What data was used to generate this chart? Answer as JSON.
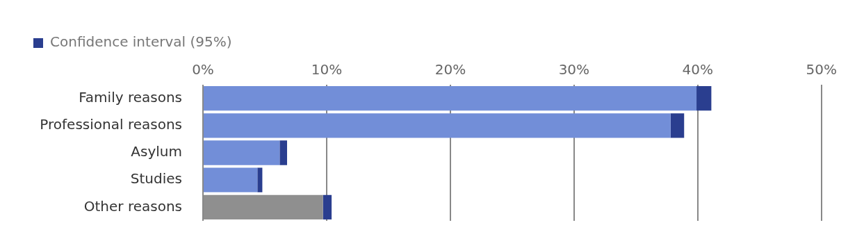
{
  "chart_data": {
    "type": "bar",
    "orientation": "horizontal",
    "stacked": true,
    "legend": "top left",
    "categories": [
      "Family reasons",
      "Professional reasons",
      "Asylum",
      "Studies",
      "Other reasons"
    ],
    "series": [
      {
        "colors": [
          "#728ed8",
          "#728ed8",
          "#728ed8",
          "#728ed8",
          "#8f8f8f"
        ],
        "values": [
          39.9,
          37.8,
          6.2,
          4.4,
          9.7
        ]
      },
      {
        "name": "Confidence interval (95%)",
        "color": "#2a3e8f",
        "values": [
          1.2,
          1.1,
          0.6,
          0.4,
          0.7
        ]
      }
    ],
    "xlim": [
      0,
      50
    ],
    "xticks": [
      {
        "value": 0,
        "label": "0%"
      },
      {
        "value": 10,
        "label": "10%"
      },
      {
        "value": 20,
        "label": "20%"
      },
      {
        "value": 30,
        "label": "30%"
      },
      {
        "value": 40,
        "label": "40%"
      },
      {
        "value": 50,
        "label": "50%"
      }
    ],
    "grid": "x"
  }
}
